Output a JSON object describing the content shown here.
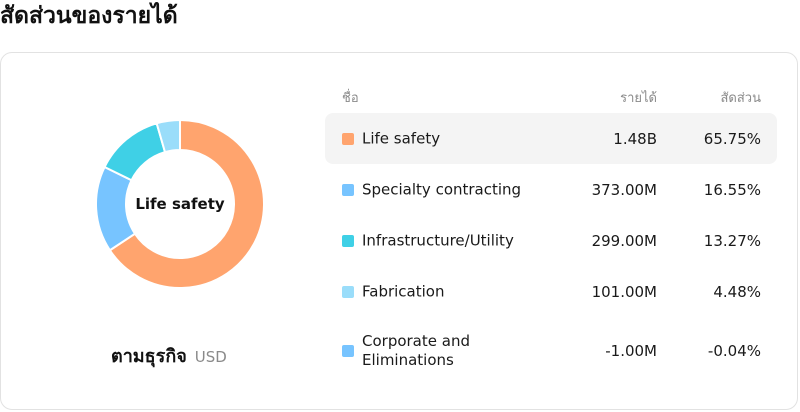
{
  "page": {
    "title": "สัดส่วนของรายได้"
  },
  "donut": {
    "center_label": "Life safety"
  },
  "caption": {
    "label": "ตามธุรกิจ",
    "unit": "USD"
  },
  "table": {
    "headers": {
      "name": "ชื่อ",
      "revenue": "รายได้",
      "share": "สัดส่วน"
    },
    "rows": [
      {
        "name": "Life safety",
        "revenue": "1.48B",
        "share": "65.75%",
        "color": "#FFA46E",
        "selected": true
      },
      {
        "name": "Specialty contracting",
        "revenue": "373.00M",
        "share": "16.55%",
        "color": "#77C4FF",
        "selected": false
      },
      {
        "name": "Infrastructure/Utility",
        "revenue": "299.00M",
        "share": "13.27%",
        "color": "#3FD0E6",
        "selected": false
      },
      {
        "name": "Fabrication",
        "revenue": "101.00M",
        "share": "4.48%",
        "color": "#9ADDFA",
        "selected": false
      },
      {
        "name": "Corporate and Eliminations",
        "revenue": "-1.00M",
        "share": "-0.04%",
        "color": "#77C4FF",
        "selected": false
      }
    ]
  },
  "chart_data": {
    "type": "pie",
    "categories": [
      "Life safety",
      "Specialty contracting",
      "Infrastructure/Utility",
      "Fabrication",
      "Corporate and Eliminations"
    ],
    "values": [
      65.75,
      16.55,
      13.27,
      4.48,
      -0.04
    ],
    "colors": [
      "#FFA46E",
      "#77C4FF",
      "#3FD0E6",
      "#9ADDFA",
      "#77C4FF"
    ],
    "selected": "Life safety"
  }
}
